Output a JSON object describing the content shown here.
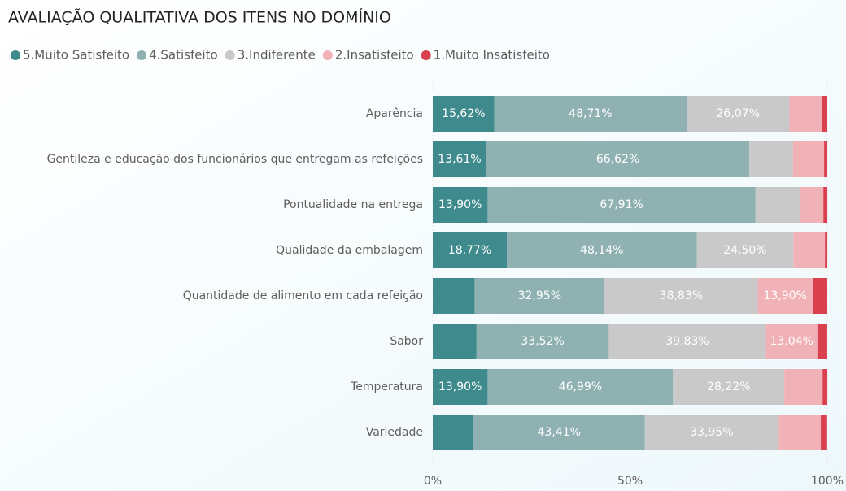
{
  "chart_data": {
    "type": "stacked-bar-horizontal",
    "title": "AVALIAÇÃO QUALITATIVA DOS ITENS NO DOMÍNIO",
    "categories": [
      "Aparência",
      "Gentileza e educação dos funcionários que entregam as refeições",
      "Pontualidade na entrega",
      "Qualidade da embalagem",
      "Quantidade de alimento em cada refeição",
      "Sabor",
      "Temperatura",
      "Variedade"
    ],
    "series": [
      {
        "name": "5.Muito Satisfeito",
        "color": "#3f8a8c",
        "values": [
          15.62,
          13.61,
          13.9,
          18.77,
          10.6,
          11.1,
          13.9,
          10.3
        ],
        "value_labels": [
          "15,62%",
          "13,61%",
          "13,90%",
          "18,77%",
          null,
          null,
          "13,90%",
          null
        ]
      },
      {
        "name": "4.Satisfeito",
        "color": "#8fb1b1",
        "values": [
          48.71,
          66.62,
          67.91,
          48.14,
          32.95,
          33.52,
          46.99,
          43.41
        ],
        "value_labels": [
          "48,71%",
          "66,62%",
          "67,91%",
          "48,14%",
          "32,95%",
          "33,52%",
          "46,99%",
          "43,41%"
        ]
      },
      {
        "name": "3.Indiferente",
        "color": "#c9c9c9",
        "values": [
          26.07,
          11.07,
          11.4,
          24.5,
          38.83,
          39.83,
          28.22,
          33.95
        ],
        "value_labels": [
          "26,07%",
          null,
          null,
          "24,50%",
          "38,83%",
          "39,83%",
          "28,22%",
          "33,95%"
        ]
      },
      {
        "name": "2.Insatisfeito",
        "color": "#f1b2b7",
        "values": [
          8.2,
          7.9,
          5.8,
          8.0,
          13.9,
          13.04,
          9.7,
          10.7
        ],
        "value_labels": [
          null,
          null,
          null,
          null,
          "13,90%",
          "13,04%",
          null,
          null
        ]
      },
      {
        "name": "1.Muito Insatisfeito",
        "color": "#d8414d",
        "values": [
          1.4,
          0.8,
          1.0,
          0.6,
          3.72,
          2.5,
          1.2,
          1.6
        ],
        "value_labels": [
          null,
          null,
          null,
          null,
          null,
          null,
          null,
          null
        ]
      }
    ],
    "xlim": [
      0,
      100
    ],
    "xticks": [
      {
        "value": 0,
        "label": "0%"
      },
      {
        "value": 50,
        "label": "50%"
      },
      {
        "value": 100,
        "label": "100%"
      }
    ],
    "grid": true
  }
}
